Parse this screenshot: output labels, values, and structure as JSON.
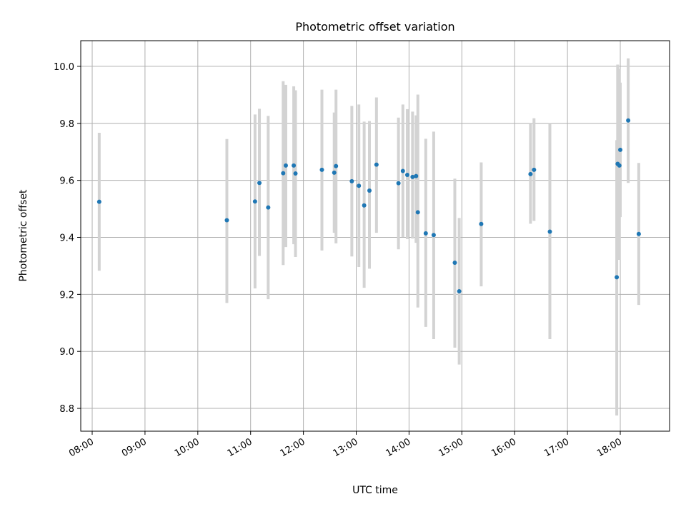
{
  "chart_data": {
    "type": "scatter",
    "title": "Photometric offset variation",
    "xlabel": "UTC time",
    "ylabel": "Photometric offset",
    "x_format": "time (HH:MM, UTC)",
    "xlim": [
      "07:47",
      "18:56"
    ],
    "ylim": [
      8.72,
      10.09
    ],
    "x_ticks": [
      "08:00",
      "09:00",
      "10:00",
      "11:00",
      "12:00",
      "13:00",
      "14:00",
      "15:00",
      "16:00",
      "17:00",
      "18:00"
    ],
    "y_ticks": [
      "8.8",
      "9.0",
      "9.2",
      "9.4",
      "9.6",
      "9.8",
      "10.0"
    ],
    "y_tick_values": [
      8.8,
      9.0,
      9.2,
      9.4,
      9.6,
      9.8,
      10.0
    ],
    "grid": true,
    "marker_color": "#1f77b4",
    "errorbar_color": "#d3d3d3",
    "points": [
      {
        "x": "08:08",
        "y": 9.525,
        "low": 9.283,
        "high": 9.767
      },
      {
        "x": "10:33",
        "y": 9.46,
        "low": 9.17,
        "high": 9.745
      },
      {
        "x": "11:05",
        "y": 9.526,
        "low": 9.221,
        "high": 9.831
      },
      {
        "x": "11:10",
        "y": 9.591,
        "low": 9.335,
        "high": 9.851
      },
      {
        "x": "11:20",
        "y": 9.505,
        "low": 9.183,
        "high": 9.826
      },
      {
        "x": "11:37",
        "y": 9.625,
        "low": 9.303,
        "high": 9.948
      },
      {
        "x": "11:40",
        "y": 9.652,
        "low": 9.366,
        "high": 9.935
      },
      {
        "x": "11:49",
        "y": 9.652,
        "low": 9.376,
        "high": 9.93
      },
      {
        "x": "11:51",
        "y": 9.624,
        "low": 9.331,
        "high": 9.916
      },
      {
        "x": "12:21",
        "y": 9.637,
        "low": 9.354,
        "high": 9.918
      },
      {
        "x": "12:35",
        "y": 9.627,
        "low": 9.416,
        "high": 9.838
      },
      {
        "x": "12:37",
        "y": 9.65,
        "low": 9.379,
        "high": 9.918
      },
      {
        "x": "12:55",
        "y": 9.597,
        "low": 9.333,
        "high": 9.861
      },
      {
        "x": "13:03",
        "y": 9.581,
        "low": 9.296,
        "high": 9.866
      },
      {
        "x": "13:09",
        "y": 9.512,
        "low": 9.223,
        "high": 9.806
      },
      {
        "x": "13:15",
        "y": 9.564,
        "low": 9.29,
        "high": 9.808
      },
      {
        "x": "13:23",
        "y": 9.655,
        "low": 9.416,
        "high": 9.891
      },
      {
        "x": "13:48",
        "y": 9.59,
        "low": 9.358,
        "high": 9.82
      },
      {
        "x": "13:53",
        "y": 9.633,
        "low": 9.401,
        "high": 9.866
      },
      {
        "x": "13:58",
        "y": 9.619,
        "low": 9.394,
        "high": 9.85
      },
      {
        "x": "14:04",
        "y": 9.612,
        "low": 9.396,
        "high": 9.841
      },
      {
        "x": "14:08",
        "y": 9.615,
        "low": 9.381,
        "high": 9.828
      },
      {
        "x": "14:10",
        "y": 9.488,
        "low": 9.154,
        "high": 9.901
      },
      {
        "x": "14:19",
        "y": 9.414,
        "low": 9.086,
        "high": 9.746
      },
      {
        "x": "14:28",
        "y": 9.408,
        "low": 9.043,
        "high": 9.771
      },
      {
        "x": "14:52",
        "y": 9.311,
        "low": 9.013,
        "high": 9.606
      },
      {
        "x": "14:57",
        "y": 9.211,
        "low": 8.954,
        "high": 9.468
      },
      {
        "x": "15:22",
        "y": 9.447,
        "low": 9.228,
        "high": 9.663
      },
      {
        "x": "16:18",
        "y": 9.622,
        "low": 9.448,
        "high": 9.801
      },
      {
        "x": "16:22",
        "y": 9.637,
        "low": 9.458,
        "high": 9.818
      },
      {
        "x": "16:40",
        "y": 9.42,
        "low": 9.043,
        "high": 9.801
      },
      {
        "x": "17:56",
        "y": 9.26,
        "low": 8.775,
        "high": 9.741
      },
      {
        "x": "17:57",
        "y": 9.658,
        "low": 9.326,
        "high": 10.006
      },
      {
        "x": "17:59",
        "y": 9.652,
        "low": 9.321,
        "high": 9.991
      },
      {
        "x": "18:00",
        "y": 9.707,
        "low": 9.471,
        "high": 9.943
      },
      {
        "x": "18:09",
        "y": 9.81,
        "low": 9.591,
        "high": 10.028
      },
      {
        "x": "18:21",
        "y": 9.412,
        "low": 9.163,
        "high": 9.661
      }
    ]
  }
}
